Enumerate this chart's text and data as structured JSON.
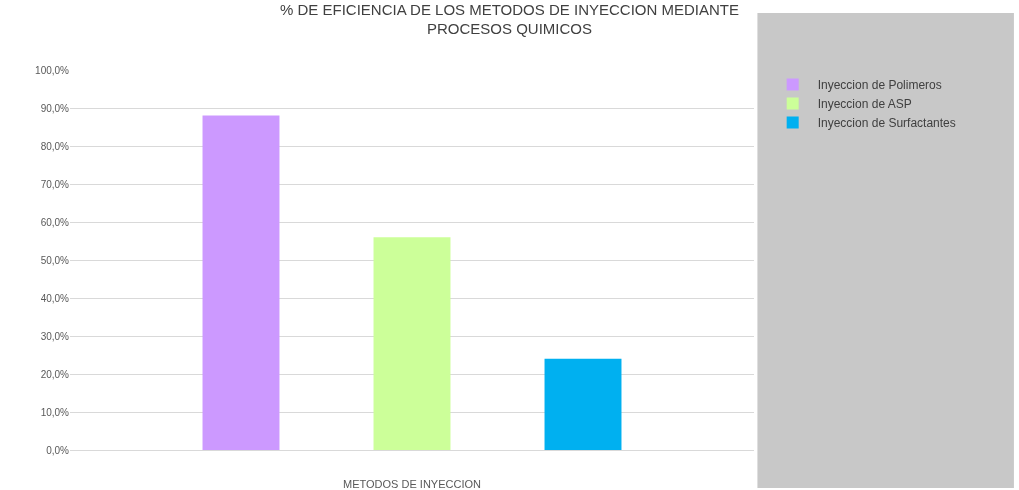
{
  "chart_data": {
    "type": "bar",
    "title": "% DE EFICIENCIA DE LOS METODOS DE INYECCION MEDIANTE\nPROCESOS QUIMICOS",
    "xlabel": "METODOS DE INYECCION",
    "categories": [
      null
    ],
    "series": [
      {
        "name": "Inyeccion de Polimeros",
        "color": "#cc99ff",
        "values": [
          88
        ]
      },
      {
        "name": "Inyeccion de ASP",
        "color": "#ccff99",
        "values": [
          56
        ]
      },
      {
        "name": "Inyeccion de Surfactantes",
        "color": "#00b0f0",
        "values": [
          24
        ]
      }
    ],
    "ylim": [
      0,
      100
    ],
    "yticks": [
      {
        "value": 0,
        "label": "0,0%"
      },
      {
        "value": 10,
        "label": "10,0%"
      },
      {
        "value": 20,
        "label": "20,0%"
      },
      {
        "value": 30,
        "label": "30,0%"
      },
      {
        "value": 40,
        "label": "40,0%"
      },
      {
        "value": 50,
        "label": "50,0%"
      },
      {
        "value": 60,
        "label": "60,0%"
      },
      {
        "value": 70,
        "label": "70,0%"
      },
      {
        "value": 80,
        "label": "80,0%"
      },
      {
        "value": 90,
        "label": "90,0%"
      },
      {
        "value": 100,
        "label": "100,0%"
      }
    ],
    "grid": "y",
    "legend": "right"
  }
}
